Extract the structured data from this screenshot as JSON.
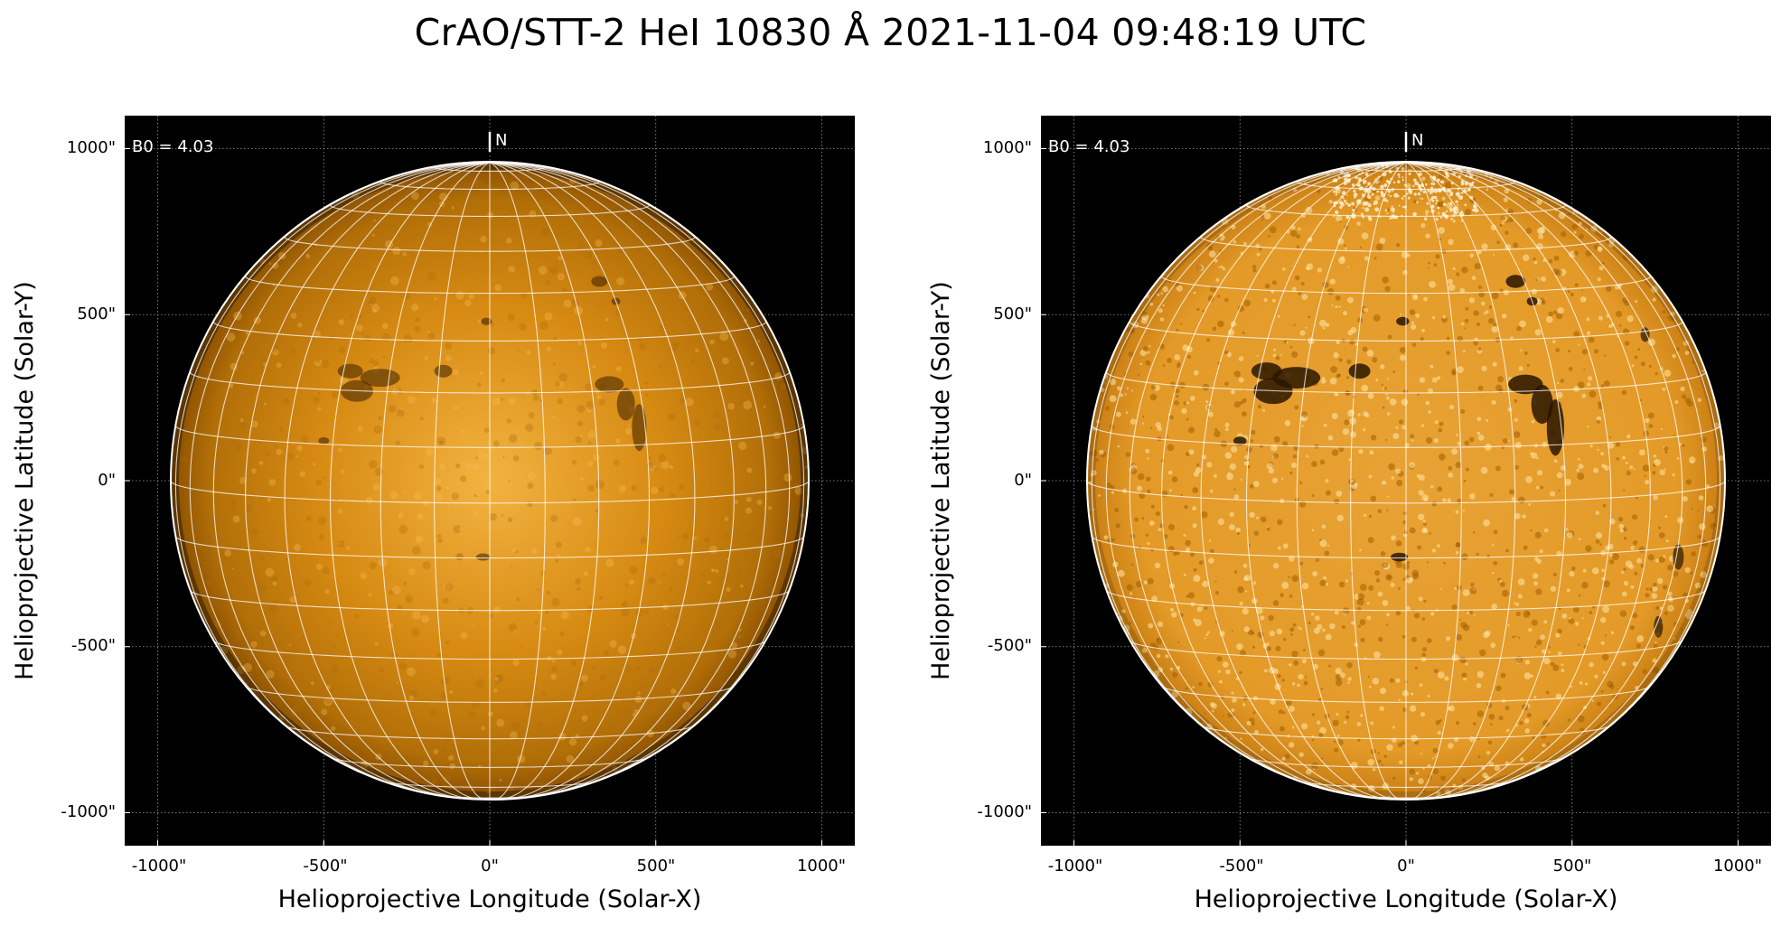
{
  "title": "CrAO/STT-2 HeI 10830 Å 2021-11-04 09:48:19 UTC",
  "colors": {
    "disk_dark": "#8a4f00",
    "disk_mid": "#d68a12",
    "disk_light": "#f3b340",
    "background": "#000000",
    "grid": "#ffffff"
  },
  "panels": [
    {
      "name": "left",
      "xlabel": "Helioprojective Longitude (Solar-X)",
      "ylabel": "Helioprojective Latitude (Solar-Y)",
      "b0_label": "B0 = 4.03",
      "north_label": "N",
      "xticks": [
        "-1000\"",
        "-500\"",
        "0\"",
        "500\"",
        "1000\""
      ],
      "yticks": [
        "1000\"",
        "500\"",
        "0\"",
        "-500\"",
        "-1000\""
      ],
      "contrast": "normal"
    },
    {
      "name": "right",
      "xlabel": "Helioprojective Longitude (Solar-X)",
      "ylabel": "Helioprojective Latitude (Solar-Y)",
      "b0_label": "B0 = 4.03",
      "north_label": "N",
      "xticks": [
        "-1000\"",
        "-500\"",
        "0\"",
        "500\"",
        "1000\""
      ],
      "yticks": [
        "1000\"",
        "500\"",
        "0\"",
        "-500\"",
        "-1000\""
      ],
      "contrast": "enhanced"
    }
  ]
}
